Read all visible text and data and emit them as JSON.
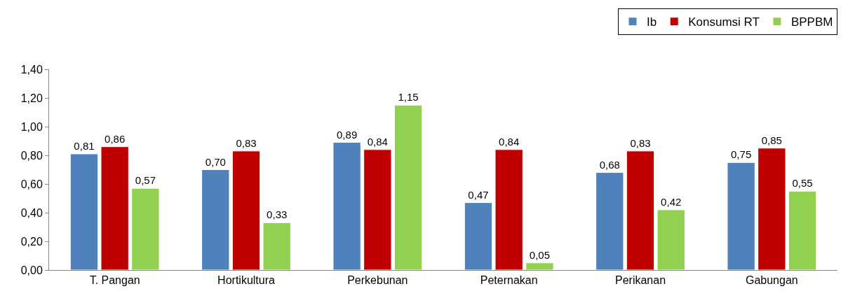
{
  "chart_data": {
    "type": "bar",
    "categories": [
      "T. Pangan",
      "Hortikultura",
      "Perkebunan",
      "Peternakan",
      "Perikanan",
      "Gabungan"
    ],
    "series": [
      {
        "name": "Ib",
        "color": "#4f81bd",
        "values": [
          0.81,
          0.7,
          0.89,
          0.47,
          0.68,
          0.75
        ],
        "value_labels": [
          "0,81",
          "0,70",
          "0,89",
          "0,47",
          "0,68",
          "0,75"
        ]
      },
      {
        "name": "Konsumsi RT",
        "color": "#c00000",
        "values": [
          0.86,
          0.83,
          0.84,
          0.84,
          0.83,
          0.85
        ],
        "value_labels": [
          "0,86",
          "0,83",
          "0,84",
          "0,84",
          "0,83",
          "0,85"
        ]
      },
      {
        "name": "BPPBM",
        "color": "#92d050",
        "values": [
          0.57,
          0.33,
          1.15,
          0.05,
          0.42,
          0.55
        ],
        "value_labels": [
          "0,57",
          "0,33",
          "1,15",
          "0,05",
          "0,42",
          "0,55"
        ]
      }
    ],
    "ylim": [
      0,
      1.4
    ],
    "yticks": [
      {
        "value": 0,
        "label": "0,00"
      },
      {
        "value": 0.2,
        "label": "0,20"
      },
      {
        "value": 0.4,
        "label": "0,40"
      },
      {
        "value": 0.6,
        "label": "0,60"
      },
      {
        "value": 0.8,
        "label": "0,80"
      },
      {
        "value": 1,
        "label": "1,00"
      },
      {
        "value": 1.2,
        "label": "1,20"
      },
      {
        "value": 1.4,
        "label": "1,40"
      }
    ],
    "grid": false,
    "legend": "top right"
  }
}
